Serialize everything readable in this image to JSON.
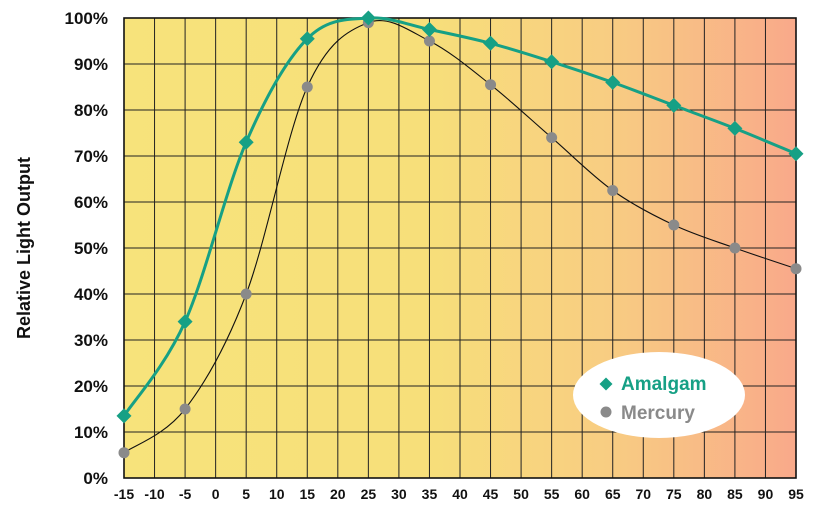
{
  "chart_data": {
    "type": "line",
    "title": "",
    "xlabel": "",
    "ylabel": "Relative Light Output",
    "x_ticks": [
      "-15",
      "-10",
      "-5",
      "0",
      "5",
      "10",
      "15",
      "20",
      "25",
      "30",
      "35",
      "40",
      "45",
      "50",
      "55",
      "60",
      "65",
      "70",
      "75",
      "80",
      "85",
      "90",
      "95"
    ],
    "y_ticks": [
      "0%",
      "10%",
      "20%",
      "30%",
      "40%",
      "50%",
      "60%",
      "70%",
      "80%",
      "90%",
      "100%"
    ],
    "xlim": [
      -15,
      95
    ],
    "ylim": [
      0,
      100
    ],
    "grid": true,
    "background": "yellow-to-orange gradient",
    "legend_position": "bottom-right",
    "series": [
      {
        "name": "Amalgam",
        "color": "#16a085",
        "marker": "diamond",
        "x": [
          -15,
          -5,
          5,
          15,
          25,
          35,
          45,
          55,
          65,
          75,
          85,
          95
        ],
        "values": [
          13.5,
          34,
          73,
          95.5,
          100,
          97.5,
          94.5,
          90.5,
          86,
          81,
          76,
          70.5
        ]
      },
      {
        "name": "Mercury",
        "color": "#8a8a8a",
        "marker": "circle",
        "x": [
          -15,
          -5,
          5,
          15,
          25,
          35,
          45,
          55,
          65,
          75,
          85,
          95
        ],
        "values": [
          5.5,
          15,
          40,
          85,
          99,
          95,
          85.5,
          74,
          62.5,
          55,
          50,
          45.5
        ]
      }
    ]
  }
}
